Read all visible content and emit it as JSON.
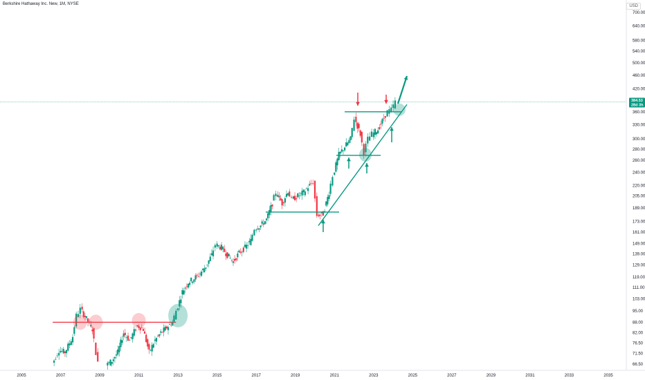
{
  "header": {
    "title": "Berkshire Hathaway Inc. New, 1M, NYSE",
    "currency": "USD"
  },
  "colors": {
    "up": "#089981",
    "down": "#f23645",
    "support": "#089981",
    "resistance": "#f23645",
    "current_line": "#089981"
  },
  "chart_data": {
    "type": "candlestick",
    "title": "Berkshire Hathaway Inc. New, 1M, NYSE",
    "xlabel": "",
    "ylabel": "",
    "y_axis_currency": "USD",
    "y_scale": "log",
    "x_ticks": [
      "2005",
      "2007",
      "2009",
      "2011",
      "2013",
      "2015",
      "2017",
      "2019",
      "2021",
      "2023",
      "2025",
      "2027",
      "2029",
      "2031",
      "2033",
      "2035"
    ],
    "y_ticks": [
      700,
      640,
      580,
      540,
      500,
      460,
      420,
      384.53,
      360,
      330,
      300,
      280,
      260,
      240,
      220,
      205,
      189,
      173,
      161,
      149,
      139,
      129,
      119,
      111,
      103,
      95,
      88,
      82,
      76.5,
      71.5,
      66.5
    ],
    "y_tick_labels": [
      "700.00",
      "640.00",
      "580.00",
      "540.00",
      "500.00",
      "460.00",
      "420.00",
      "",
      "360.00",
      "330.00",
      "300.00",
      "280.00",
      "260.00",
      "240.00",
      "220.00",
      "205.00",
      "189.00",
      "173.00",
      "161.00",
      "149.00",
      "139.00",
      "129.00",
      "119.00",
      "111.00",
      "103.00",
      "95.00",
      "88.00",
      "82.00",
      "76.50",
      "71.50",
      "66.50"
    ],
    "last_price": 384.53,
    "last_price_label": "384.53",
    "countdown_label": "28d 3h",
    "series": [
      {
        "t": 2006.5,
        "v": 64
      },
      {
        "t": 2007.0,
        "v": 73
      },
      {
        "t": 2007.3,
        "v": 72
      },
      {
        "t": 2007.7,
        "v": 80
      },
      {
        "t": 2007.9,
        "v": 92
      },
      {
        "t": 2008.1,
        "v": 96
      },
      {
        "t": 2008.4,
        "v": 90
      },
      {
        "t": 2008.7,
        "v": 84
      },
      {
        "t": 2008.9,
        "v": 72
      },
      {
        "t": 2009.1,
        "v": 62
      },
      {
        "t": 2009.4,
        "v": 66
      },
      {
        "t": 2009.7,
        "v": 68
      },
      {
        "t": 2010.0,
        "v": 72
      },
      {
        "t": 2010.3,
        "v": 82
      },
      {
        "t": 2010.6,
        "v": 78
      },
      {
        "t": 2011.0,
        "v": 86
      },
      {
        "t": 2011.3,
        "v": 84
      },
      {
        "t": 2011.6,
        "v": 72
      },
      {
        "t": 2011.9,
        "v": 78
      },
      {
        "t": 2012.2,
        "v": 82
      },
      {
        "t": 2012.5,
        "v": 85
      },
      {
        "t": 2012.8,
        "v": 88
      },
      {
        "t": 2013.0,
        "v": 95
      },
      {
        "t": 2013.3,
        "v": 108
      },
      {
        "t": 2013.6,
        "v": 115
      },
      {
        "t": 2013.9,
        "v": 118
      },
      {
        "t": 2014.2,
        "v": 122
      },
      {
        "t": 2014.5,
        "v": 128
      },
      {
        "t": 2014.8,
        "v": 138
      },
      {
        "t": 2015.0,
        "v": 148
      },
      {
        "t": 2015.3,
        "v": 145
      },
      {
        "t": 2015.6,
        "v": 138
      },
      {
        "t": 2015.9,
        "v": 132
      },
      {
        "t": 2016.2,
        "v": 140
      },
      {
        "t": 2016.5,
        "v": 145
      },
      {
        "t": 2016.8,
        "v": 152
      },
      {
        "t": 2017.0,
        "v": 165
      },
      {
        "t": 2017.3,
        "v": 168
      },
      {
        "t": 2017.6,
        "v": 175
      },
      {
        "t": 2017.9,
        "v": 195
      },
      {
        "t": 2018.1,
        "v": 210
      },
      {
        "t": 2018.4,
        "v": 195
      },
      {
        "t": 2018.7,
        "v": 212
      },
      {
        "t": 2018.9,
        "v": 200
      },
      {
        "t": 2019.2,
        "v": 205
      },
      {
        "t": 2019.5,
        "v": 210
      },
      {
        "t": 2019.8,
        "v": 220
      },
      {
        "t": 2020.0,
        "v": 225
      },
      {
        "t": 2020.2,
        "v": 180
      },
      {
        "t": 2020.5,
        "v": 182
      },
      {
        "t": 2020.8,
        "v": 210
      },
      {
        "t": 2021.0,
        "v": 235
      },
      {
        "t": 2021.3,
        "v": 270
      },
      {
        "t": 2021.6,
        "v": 285
      },
      {
        "t": 2021.9,
        "v": 300
      },
      {
        "t": 2022.1,
        "v": 345
      },
      {
        "t": 2022.4,
        "v": 310
      },
      {
        "t": 2022.6,
        "v": 275
      },
      {
        "t": 2022.8,
        "v": 300
      },
      {
        "t": 2023.0,
        "v": 310
      },
      {
        "t": 2023.3,
        "v": 320
      },
      {
        "t": 2023.6,
        "v": 345
      },
      {
        "t": 2023.8,
        "v": 360
      },
      {
        "t": 2024.0,
        "v": 365
      },
      {
        "t": 2024.2,
        "v": 384.53
      }
    ]
  }
}
